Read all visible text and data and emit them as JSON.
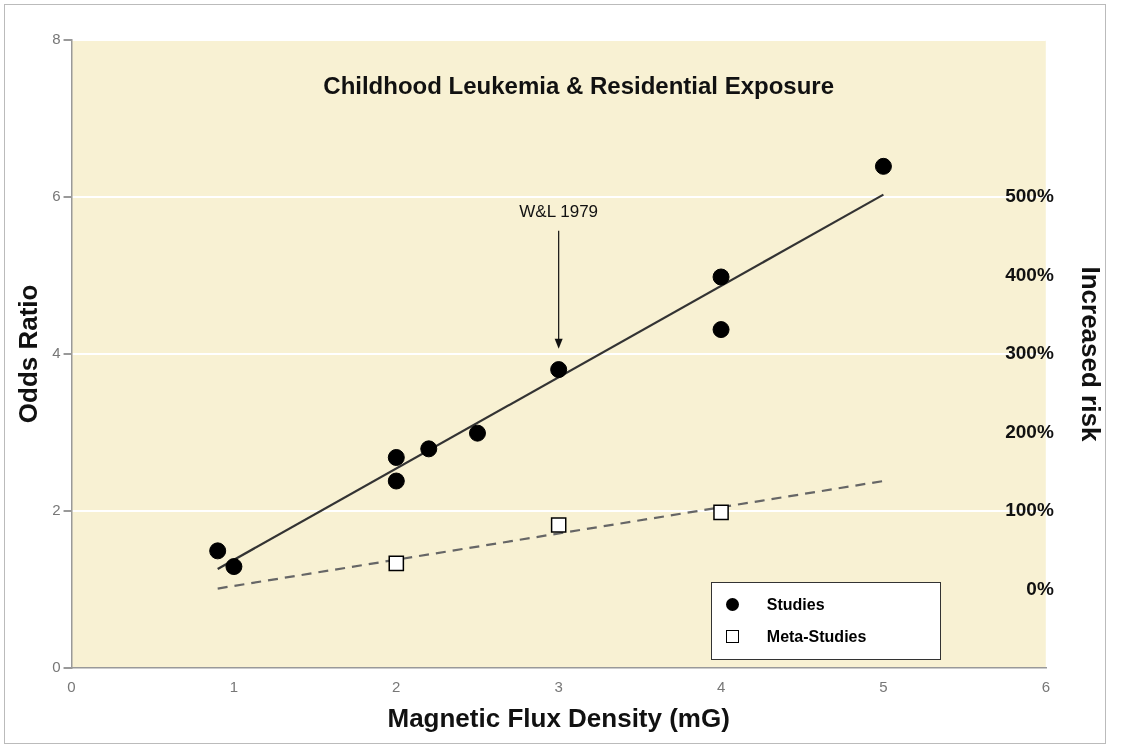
{
  "chart_data": {
    "type": "scatter",
    "title": "Childhood Leukemia & Residential Exposure",
    "xlabel": "Magnetic Flux Density (mG)",
    "ylabel": "Odds Ratio",
    "y2label": "Increased risk",
    "series": [
      {
        "name": "Studies",
        "color": "#000000",
        "marker": "circle",
        "x": [
          0.9,
          1.0,
          2.0,
          2.0,
          2.2,
          2.5,
          3.0,
          4.0,
          4.0,
          5.0
        ],
        "values": [
          1.49,
          1.29,
          2.68,
          2.38,
          2.79,
          2.99,
          3.8,
          4.31,
          4.98,
          6.39
        ]
      },
      {
        "name": "Meta-Studies",
        "color": "#000000",
        "marker": "square",
        "x": [
          2.0,
          3.0,
          4.0
        ],
        "values": [
          1.33,
          1.82,
          1.98
        ]
      },
      {
        "type": "line",
        "color": "#333333",
        "marker": "none",
        "line_style": "solid",
        "x": [
          0.9,
          5.0
        ],
        "values": [
          1.26,
          6.03
        ]
      },
      {
        "type": "line",
        "color": "#666666",
        "marker": "none",
        "line_style": "dashed",
        "x": [
          0.9,
          5.0
        ],
        "values": [
          1.01,
          2.38
        ]
      }
    ],
    "xlim": [
      0,
      6
    ],
    "xticks": [
      0,
      1,
      2,
      3,
      4,
      5,
      6
    ],
    "ylim": [
      0,
      8
    ],
    "yticks": [
      0,
      2,
      4,
      6,
      8
    ],
    "y2lim": [
      -100,
      700
    ],
    "y2ticks": [
      {
        "value": 0,
        "label": "0%"
      },
      {
        "value": 100,
        "label": "100%"
      },
      {
        "value": 200,
        "label": "200%"
      },
      {
        "value": 300,
        "label": "300%"
      },
      {
        "value": 400,
        "label": "400%"
      },
      {
        "value": 500,
        "label": "500%"
      }
    ],
    "annotations": [
      "W&L 1979"
    ],
    "grid": "y",
    "legend": "bottom right"
  }
}
